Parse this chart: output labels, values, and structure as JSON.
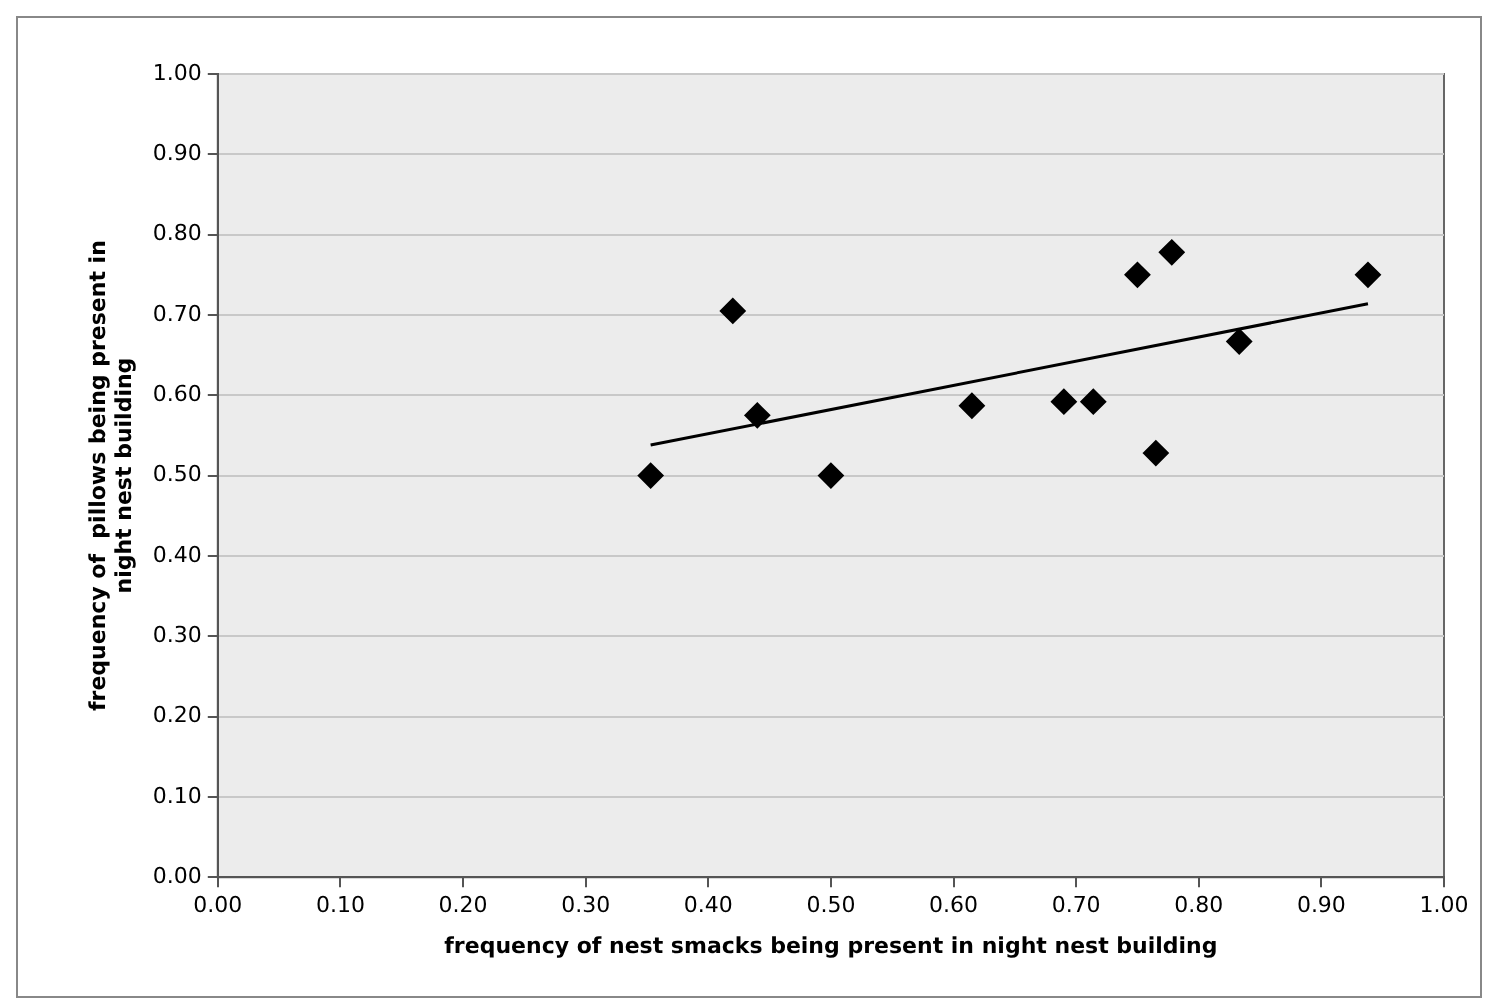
{
  "chart_data": {
    "type": "scatter",
    "xlabel": "frequency of nest smacks being present in night nest building",
    "ylabel": "frequency of  pillows being present in night nest building",
    "x": [
      0.353,
      0.42,
      0.44,
      0.5,
      0.615,
      0.69,
      0.714,
      0.75,
      0.765,
      0.778,
      0.833,
      0.938
    ],
    "values": [
      0.5,
      0.705,
      0.575,
      0.5,
      0.587,
      0.592,
      0.592,
      0.75,
      0.528,
      0.778,
      0.667,
      0.75
    ],
    "color": "#000000",
    "marker": "diamond",
    "series": [
      {
        "type": "line",
        "color": "#000000",
        "marker": "none",
        "x": [
          0.353,
          0.938
        ],
        "values": [
          0.538,
          0.714
        ]
      }
    ],
    "xlim": [
      0,
      1
    ],
    "ylim": [
      0,
      1
    ],
    "xticks": [
      {
        "value": 0,
        "label": "0.00"
      },
      {
        "value": 0.1,
        "label": "0.10"
      },
      {
        "value": 0.2,
        "label": "0.20"
      },
      {
        "value": 0.3,
        "label": "0.30"
      },
      {
        "value": 0.4,
        "label": "0.40"
      },
      {
        "value": 0.5,
        "label": "0.50"
      },
      {
        "value": 0.6,
        "label": "0.60"
      },
      {
        "value": 0.7,
        "label": "0.70"
      },
      {
        "value": 0.8,
        "label": "0.80"
      },
      {
        "value": 0.9,
        "label": "0.90"
      },
      {
        "value": 1,
        "label": "1.00"
      }
    ],
    "yticks": [
      {
        "value": 0,
        "label": "0.00"
      },
      {
        "value": 0.1,
        "label": "0.10"
      },
      {
        "value": 0.2,
        "label": "0.20"
      },
      {
        "value": 0.3,
        "label": "0.30"
      },
      {
        "value": 0.4,
        "label": "0.40"
      },
      {
        "value": 0.5,
        "label": "0.50"
      },
      {
        "value": 0.6,
        "label": "0.60"
      },
      {
        "value": 0.7,
        "label": "0.70"
      },
      {
        "value": 0.8,
        "label": "0.80"
      },
      {
        "value": 0.9,
        "label": "0.90"
      },
      {
        "value": 1,
        "label": "1.00"
      }
    ],
    "grid": "y",
    "legend": false
  }
}
